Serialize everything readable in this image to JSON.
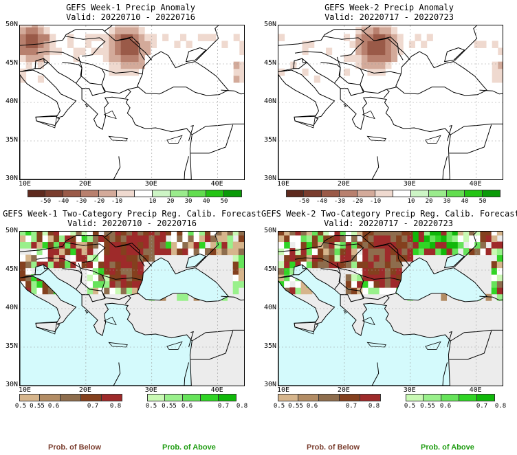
{
  "panels": [
    {
      "title": "GEFS Week-1 Precip Anomaly",
      "valid": "Valid: 20220710 - 20220716"
    },
    {
      "title": "GEFS Week-2 Precip Anomaly",
      "valid": "Valid: 20220717 - 20220723"
    },
    {
      "title": "GEFS Week-1 Two-Category Precip Reg. Calib. Forecast",
      "valid": "Valid: 20220710 - 20220716"
    },
    {
      "title": "GEFS Week-2 Two-Category Precip Reg. Calib. Forecast",
      "valid": "Valid: 20220717 - 20220723"
    }
  ],
  "axes": {
    "lat_labels": [
      "50N",
      "45N",
      "40N",
      "35N",
      "30N"
    ],
    "lon_labels": [
      "10E",
      "20E",
      "30E",
      "40E"
    ]
  },
  "anomaly_colorbar": {
    "labels": [
      "-50",
      "-40",
      "-30",
      "-20",
      "-10",
      "10",
      "20",
      "30",
      "40",
      "50"
    ],
    "colors": [
      "#5e2a1e",
      "#7a3d2e",
      "#9a5a48",
      "#b8806e",
      "#d3aa9a",
      "#efd9cf",
      "#ffffff",
      "#cdf5c5",
      "#9aeb8c",
      "#62dd4f",
      "#24c414",
      "#0a9a08"
    ]
  },
  "prob_colorbars": {
    "below": {
      "labels": [
        "0.5",
        "0.55",
        "0.6",
        "0.7",
        "0.8"
      ],
      "colors": [
        "#d6b58c",
        "#b28c64",
        "#8e6d4d",
        "#84401e",
        "#9e2a2a"
      ]
    },
    "above": {
      "labels": [
        "0.5",
        "0.55",
        "0.6",
        "0.7",
        "0.8"
      ],
      "colors": [
        "#c9f9b4",
        "#99f08b",
        "#66e35a",
        "#30d425",
        "#10b80a"
      ]
    }
  },
  "legend": {
    "below_label": "Prob. of Below",
    "above_label": "Prob. of Above",
    "below_color": "#7a3d2e",
    "above_color": "#1f9c12"
  },
  "colors": {
    "sea": "#d4fafc",
    "land_nodata": "#ececec"
  }
}
